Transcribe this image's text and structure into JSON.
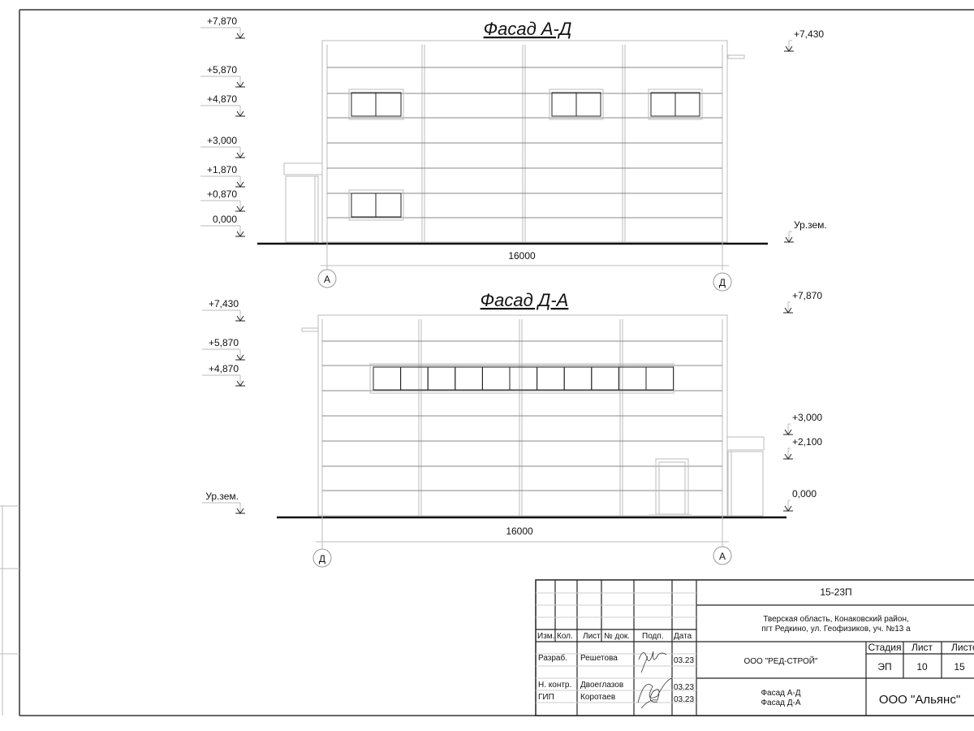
{
  "facade_top": {
    "title": "Фасад А-Д",
    "levels_left": [
      "+7,870",
      "+5,870",
      "+4,870",
      "+3,000",
      "+1,870",
      "+0,870",
      "0,000"
    ],
    "levels_right": [
      "+7,430",
      "Ур.зем."
    ],
    "dimension": "16000",
    "axis_left": "А",
    "axis_right": "Д"
  },
  "facade_bottom": {
    "title": "Фасад Д-А",
    "levels_left": [
      "+7,430",
      "+5,870",
      "+4,870",
      "Ур.зем."
    ],
    "levels_right": [
      "+7,870",
      "+3,000",
      "+2,100",
      "0,000"
    ],
    "dimension": "16000",
    "axis_left": "Д",
    "axis_right": "А"
  },
  "title_block": {
    "code": "15-23П",
    "address_line1": "Тверская область, Конаковский район,",
    "address_line2": "пгт Редкино, ул. Геофизиков, уч. №13 а",
    "headers": [
      "Изм.",
      "Кол.",
      "Лист",
      "№ док.",
      "Подп.",
      "Дата"
    ],
    "roles": [
      {
        "role": "Разраб.",
        "name": "Решетова",
        "date": "03.23"
      },
      {
        "role": "Н. контр.",
        "name": "Двоеглазов",
        "date": "03.23"
      },
      {
        "role": "ГИП",
        "name": "Коротаев",
        "date": "03.23"
      }
    ],
    "designer_org": "ООО \"РЕД-СТРОЙ\"",
    "stage_header": "Стадия",
    "sheet_header": "Лист",
    "sheets_header": "Листов",
    "stage": "ЭП",
    "sheet": "10",
    "sheets": "15",
    "drawing_title_1": "Фасад А-Д",
    "drawing_title_2": "Фасад Д-А",
    "customer_org": "ООО \"Альянс\""
  }
}
